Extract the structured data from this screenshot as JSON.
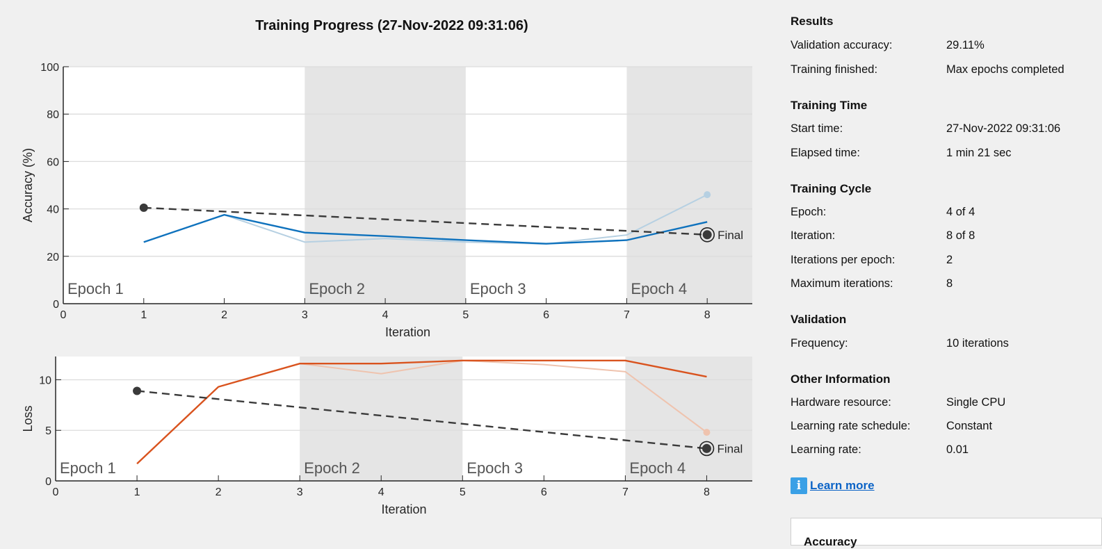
{
  "window": {
    "title": "Training Progress (27-Nov-2022 09:31:06)"
  },
  "chart_data": [
    {
      "type": "line",
      "ylabel": "Accuracy (%)",
      "xlabel": "Iteration",
      "xlim": [
        0,
        8.56
      ],
      "ylim": [
        0,
        100
      ],
      "xticks": [
        0,
        1,
        2,
        3,
        4,
        5,
        6,
        7,
        8
      ],
      "yticks": [
        0,
        20,
        40,
        60,
        80,
        100
      ],
      "epochs": [
        {
          "label": "Epoch 1",
          "start": 0,
          "end": 3,
          "shaded": false
        },
        {
          "label": "Epoch 2",
          "start": 3,
          "end": 5,
          "shaded": true
        },
        {
          "label": "Epoch 3",
          "start": 5,
          "end": 7,
          "shaded": false
        },
        {
          "label": "Epoch 4",
          "start": 7,
          "end": 8.56,
          "shaded": true
        }
      ],
      "series": [
        {
          "role": "raw",
          "color": "#b6d0e2",
          "x": [
            1,
            2,
            3,
            4,
            5,
            6,
            7,
            8
          ],
          "y": [
            26,
            37.5,
            26,
            27.5,
            26,
            25.2,
            29,
            46
          ]
        },
        {
          "role": "smoothed",
          "color": "#0f72bd",
          "x": [
            1,
            2,
            3,
            4,
            5,
            6,
            7,
            8
          ],
          "y": [
            26,
            37.5,
            30,
            28.5,
            26.8,
            25.3,
            26.8,
            34.5
          ]
        },
        {
          "role": "validation",
          "color": "#3a3a3a",
          "dashed": true,
          "x": [
            1,
            8
          ],
          "y": [
            40.5,
            29.1
          ]
        }
      ],
      "final_label": "Final"
    },
    {
      "type": "line",
      "ylabel": "Loss",
      "xlabel": "Iteration",
      "xlim": [
        0,
        8.56
      ],
      "ylim": [
        0,
        12.3
      ],
      "xticks": [
        0,
        1,
        2,
        3,
        4,
        5,
        6,
        7,
        8
      ],
      "yticks": [
        0,
        5,
        10
      ],
      "epochs": [
        {
          "label": "Epoch 1",
          "start": 0,
          "end": 3,
          "shaded": false
        },
        {
          "label": "Epoch 2",
          "start": 3,
          "end": 5,
          "shaded": true
        },
        {
          "label": "Epoch 3",
          "start": 5,
          "end": 7,
          "shaded": false
        },
        {
          "label": "Epoch 4",
          "start": 7,
          "end": 8.56,
          "shaded": true
        }
      ],
      "series": [
        {
          "role": "raw",
          "color": "#efc3ae",
          "x": [
            1,
            2,
            3,
            4,
            5,
            6,
            7,
            8
          ],
          "y": [
            1.7,
            9.3,
            11.6,
            10.6,
            11.9,
            11.5,
            10.8,
            4.8
          ]
        },
        {
          "role": "smoothed",
          "color": "#d9531e",
          "x": [
            1,
            2,
            3,
            4,
            5,
            6,
            7,
            8
          ],
          "y": [
            1.7,
            9.3,
            11.6,
            11.6,
            11.9,
            11.9,
            11.9,
            10.3
          ]
        },
        {
          "role": "validation",
          "color": "#3a3a3a",
          "dashed": true,
          "x": [
            1,
            8
          ],
          "y": [
            8.9,
            3.2
          ]
        }
      ],
      "final_label": "Final"
    }
  ],
  "panel": {
    "results": {
      "title": "Results",
      "rows": [
        {
          "k": "Validation accuracy:",
          "v": "29.11%"
        },
        {
          "k": "Training finished:",
          "v": "Max epochs completed"
        }
      ]
    },
    "time": {
      "title": "Training Time",
      "rows": [
        {
          "k": "Start time:",
          "v": "27-Nov-2022 09:31:06"
        },
        {
          "k": "Elapsed time:",
          "v": "1 min 21 sec"
        }
      ]
    },
    "cycle": {
      "title": "Training Cycle",
      "rows": [
        {
          "k": "Epoch:",
          "v": "4 of 4"
        },
        {
          "k": "Iteration:",
          "v": "8 of 8"
        },
        {
          "k": "Iterations per epoch:",
          "v": "2"
        },
        {
          "k": "Maximum iterations:",
          "v": "8"
        }
      ]
    },
    "validation": {
      "title": "Validation",
      "rows": [
        {
          "k": "Frequency:",
          "v": "10 iterations"
        }
      ]
    },
    "other": {
      "title": "Other Information",
      "rows": [
        {
          "k": "Hardware resource:",
          "v": "Single CPU"
        },
        {
          "k": "Learning rate schedule:",
          "v": "Constant"
        },
        {
          "k": "Learning rate:",
          "v": "0.01"
        }
      ]
    },
    "learn_more": "Learn more",
    "info_icon": "info-icon",
    "bottom_box_title": "Accuracy"
  }
}
